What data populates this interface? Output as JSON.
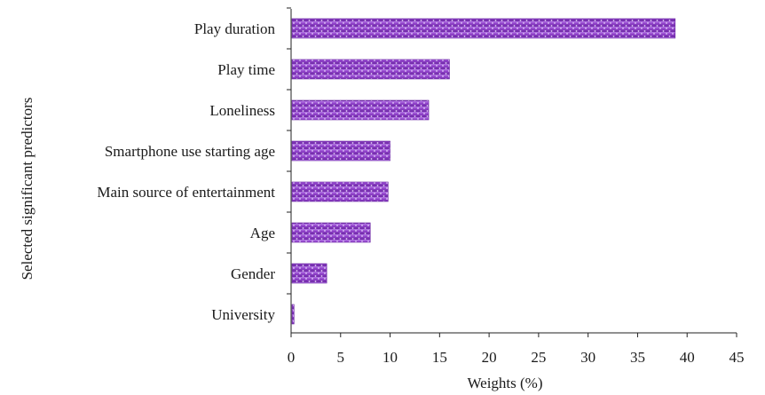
{
  "chart_data": {
    "type": "bar",
    "orientation": "horizontal",
    "categories": [
      "Play duration",
      "Play time",
      "Loneliness",
      "Smartphone use starting age",
      "Main source of entertainment",
      "Age",
      "Gender",
      "University"
    ],
    "values": [
      38.8,
      16.0,
      13.9,
      10.0,
      9.8,
      8.0,
      3.6,
      0.3
    ],
    "xlabel": "Weights (%)",
    "ylabel": "Selected significant predictors",
    "xlim": [
      0,
      45
    ],
    "xticks": [
      "0",
      "5",
      "10",
      "15",
      "20",
      "25",
      "30",
      "35",
      "40",
      "45"
    ],
    "grid": false,
    "legend": "none",
    "bar_color": "#8e3fc8",
    "bar_highlight": "#b57ae6",
    "bar_pattern": "dotted"
  }
}
